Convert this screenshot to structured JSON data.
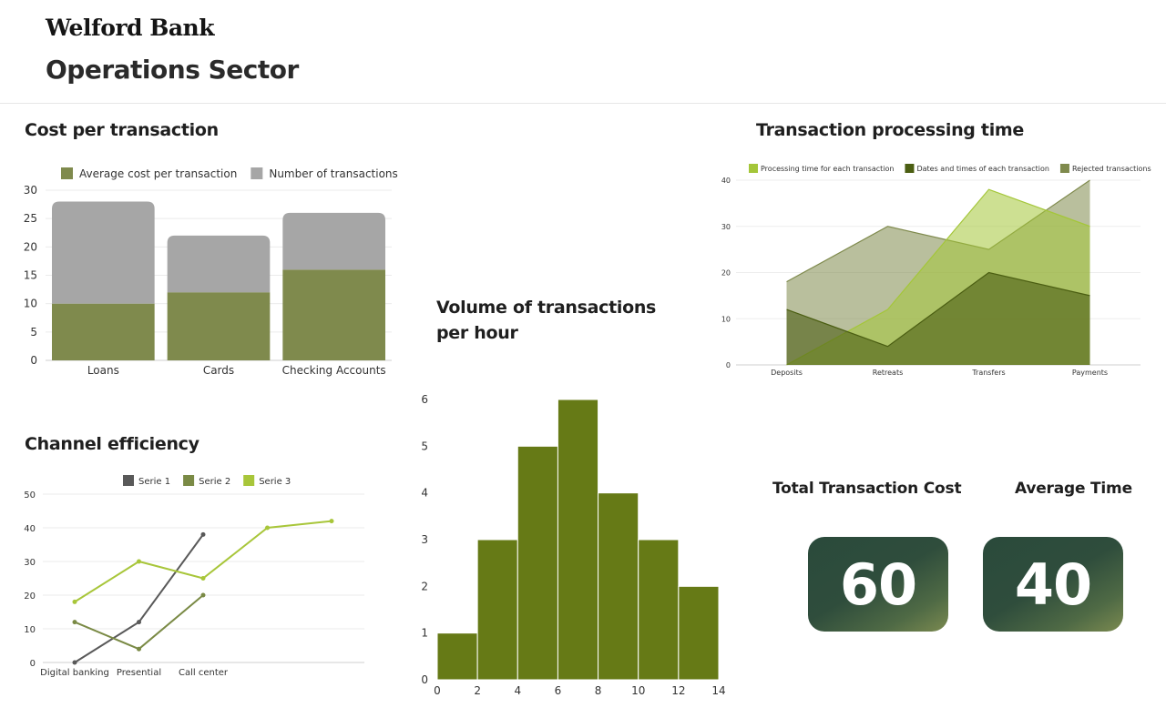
{
  "header": {
    "bank_name": "Welford Bank",
    "sector_title": "Operations Sector"
  },
  "colors": {
    "olive": "#7f8a4d",
    "gray": "#a6a6a6",
    "dark_green": "#4b5e12",
    "lime": "#a4c639",
    "hist_green": "#667a16",
    "kpi_dark": "#2a4a3b",
    "serie1": "#595959",
    "serie2": "#7a8a45",
    "serie3": "#a8c63a"
  },
  "kpis": [
    {
      "label": "Total Transaction Cost",
      "value": "60"
    },
    {
      "label": "Average Time",
      "value": "40"
    }
  ],
  "chart_data": [
    {
      "id": "cost",
      "type": "bar",
      "title": "Cost per transaction",
      "stacked": true,
      "categories": [
        "Loans",
        "Cards",
        "Checking Accounts"
      ],
      "series": [
        {
          "name": "Average cost per transaction",
          "values": [
            10,
            12,
            16
          ],
          "color": "#7f8a4d"
        },
        {
          "name": "Number of transactions",
          "values": [
            18,
            10,
            10
          ],
          "color": "#a6a6a6"
        }
      ],
      "ylim": [
        0,
        30
      ],
      "yticks": [
        0,
        5,
        10,
        15,
        20,
        25,
        30
      ],
      "grid": true,
      "legend": "top"
    },
    {
      "id": "volume",
      "type": "bar",
      "title": "Volume of transactions per hour",
      "title_lines": [
        "Volume of transactions",
        "per hour"
      ],
      "histogram": true,
      "bins": [
        [
          0,
          2
        ],
        [
          2,
          4
        ],
        [
          4,
          6
        ],
        [
          6,
          8
        ],
        [
          8,
          10
        ],
        [
          10,
          12
        ],
        [
          12,
          14
        ]
      ],
      "values": [
        1,
        3,
        5,
        6,
        4,
        3,
        2
      ],
      "xticks": [
        0,
        2,
        4,
        6,
        8,
        10,
        12,
        14
      ],
      "xlim": [
        0,
        14
      ],
      "ylim": [
        0,
        6
      ],
      "yticks": [
        0,
        1,
        2,
        3,
        4,
        5,
        6
      ],
      "color": "#667a16",
      "grid": false
    },
    {
      "id": "processing",
      "type": "area",
      "title": "Transaction processing time",
      "categories": [
        "Deposits",
        "Retreats",
        "Transfers",
        "Payments"
      ],
      "series": [
        {
          "name": "Processing time for each transaction",
          "values": [
            0,
            12,
            38,
            30
          ],
          "color": "#a4c639"
        },
        {
          "name": "Dates and times of each transaction",
          "values": [
            12,
            4,
            20,
            15
          ],
          "color": "#4b5e12"
        },
        {
          "name": "Rejected transactions",
          "values": [
            18,
            30,
            25,
            40
          ],
          "color": "#7f8a4d"
        }
      ],
      "ylim": [
        0,
        40
      ],
      "yticks": [
        0,
        10,
        20,
        30,
        40
      ],
      "grid": true,
      "legend": "top"
    },
    {
      "id": "channel",
      "type": "line",
      "title": "Channel efficiency",
      "x": [
        1,
        2,
        3,
        4,
        5
      ],
      "xticks": [
        {
          "x": 1,
          "label": "Digital banking"
        },
        {
          "x": 2,
          "label": "Presential"
        },
        {
          "x": 3,
          "label": "Call center"
        }
      ],
      "series": [
        {
          "name": "Serie 1",
          "x": [
            1,
            2,
            3
          ],
          "values": [
            0,
            12,
            38
          ],
          "color": "#595959"
        },
        {
          "name": "Serie 2",
          "x": [
            1,
            2,
            3
          ],
          "values": [
            12,
            4,
            20
          ],
          "color": "#7a8a45"
        },
        {
          "name": "Serie 3",
          "x": [
            1,
            2,
            3,
            4,
            5
          ],
          "values": [
            18,
            30,
            25,
            40,
            42
          ],
          "color": "#a8c63a"
        }
      ],
      "ylim": [
        0,
        50
      ],
      "yticks": [
        0,
        10,
        20,
        30,
        40,
        50
      ],
      "grid": true,
      "legend": "top"
    }
  ]
}
